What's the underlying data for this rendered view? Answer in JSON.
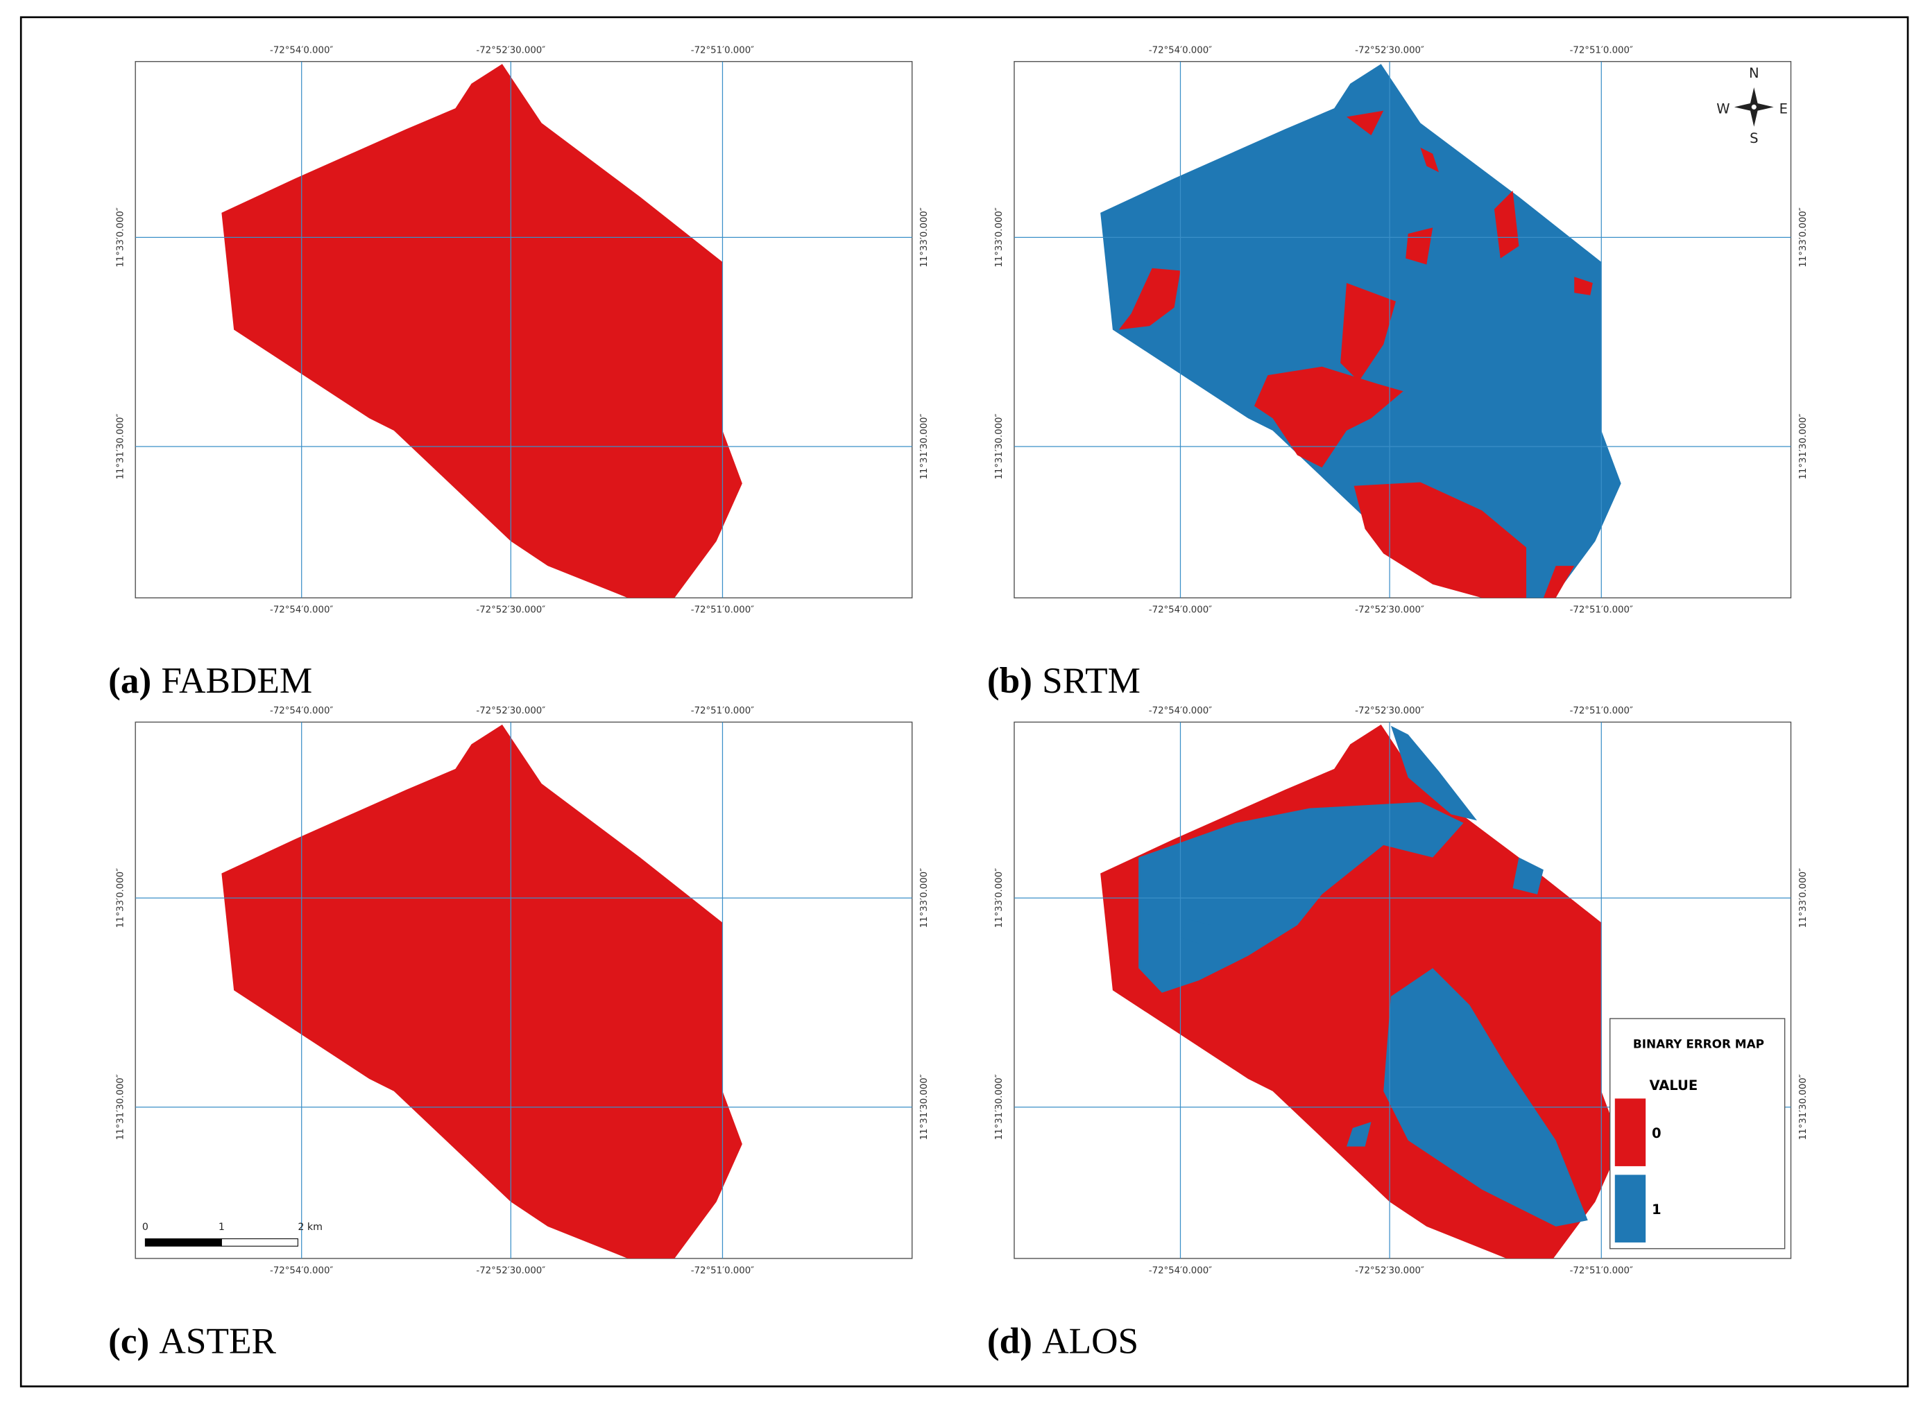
{
  "panels": [
    {
      "label": "(a)",
      "name": "FABDEM"
    },
    {
      "label": "(b)",
      "name": "SRTM"
    },
    {
      "label": "(c)",
      "name": "ASTER"
    },
    {
      "label": "(d)",
      "name": "ALOS"
    }
  ],
  "grid_labels": {
    "longitude": [
      "-72°54′0.000″",
      "-72°52′30.000″",
      "-72°51′0.000″"
    ],
    "latitude": [
      "11°33′0.000″",
      "11°31′30.000″"
    ]
  },
  "compass": {
    "north": "N",
    "south": "S",
    "east": "E",
    "west": "W"
  },
  "scale_bar": {
    "ticks": [
      "0",
      "1",
      "2 km"
    ]
  },
  "legend": {
    "title": "BINARY ERROR MAP",
    "subtitle": "VALUE",
    "classes": [
      {
        "label": "0",
        "color": "#dd1519"
      },
      {
        "label": "1",
        "color": "#1f78b4"
      }
    ]
  }
}
